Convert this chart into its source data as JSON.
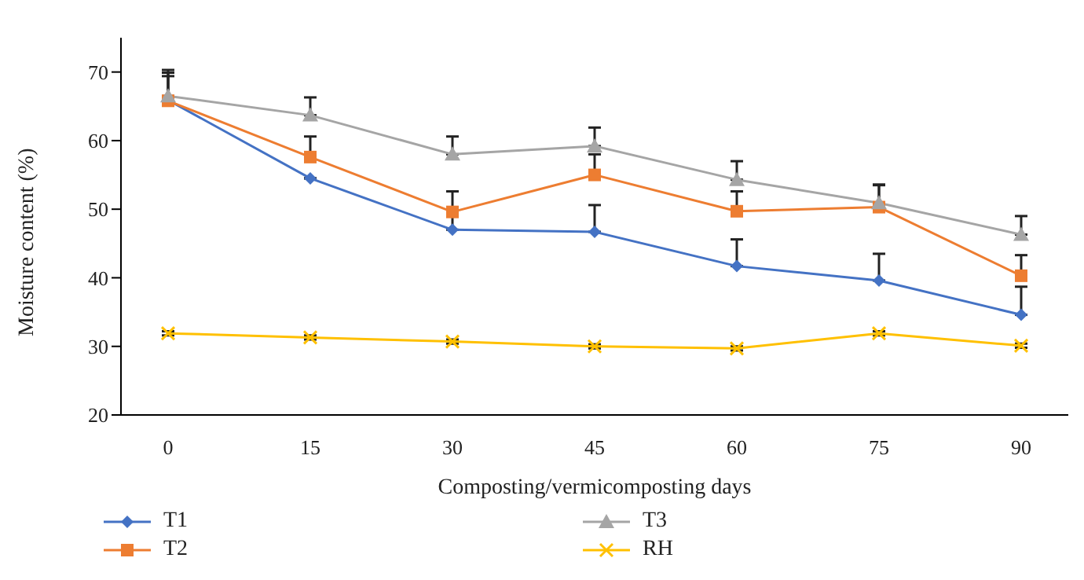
{
  "chart_data": {
    "type": "line",
    "xlabel": "Composting/vermicomposting days",
    "ylabel": "Moisture content (%)",
    "categories": [
      "0",
      "15",
      "30",
      "45",
      "60",
      "75",
      "90"
    ],
    "series": [
      {
        "name": "T1",
        "color": "#4472c4",
        "marker": "diamond",
        "values": [
          65.9,
          54.5,
          47,
          46.7,
          41.7,
          39.6,
          34.6
        ],
        "errors": [
          [
            65.9,
            69.4
          ],
          null,
          [
            47,
            49
          ],
          [
            46.7,
            50.6
          ],
          [
            41.7,
            45.6
          ],
          [
            39.6,
            43.5
          ],
          [
            34.6,
            38.7
          ]
        ]
      },
      {
        "name": "T2",
        "color": "#ed7d31",
        "marker": "square",
        "values": [
          65.8,
          57.6,
          49.6,
          55,
          49.7,
          50.3,
          40.3
        ],
        "errors": [
          [
            65.8,
            69.9
          ],
          [
            57.6,
            60.6
          ],
          [
            49.6,
            52.6
          ],
          [
            55,
            58
          ],
          [
            49.7,
            52.6
          ],
          [
            50.3,
            53.5
          ],
          [
            40.3,
            43.3
          ]
        ]
      },
      {
        "name": "T3",
        "color": "#a5a5a5",
        "marker": "triangle",
        "values": [
          66.5,
          63.7,
          58,
          59.2,
          54.3,
          50.9,
          46.3
        ],
        "errors": [
          [
            66.5,
            70.3
          ],
          [
            63.7,
            66.3
          ],
          [
            58,
            60.6
          ],
          [
            59.2,
            61.9
          ],
          [
            54.3,
            57
          ],
          [
            50.9,
            53.6
          ],
          [
            46.3,
            49
          ]
        ]
      },
      {
        "name": "RH",
        "color": "#ffc000",
        "marker": "cross",
        "values": [
          31.9,
          31.3,
          30.7,
          30,
          29.7,
          31.9,
          30.1
        ],
        "errors": [
          0.3,
          0.3,
          0.3,
          0.3,
          0.3,
          0.3,
          0.3
        ]
      }
    ],
    "ylim": [
      20,
      75
    ],
    "yticks": [
      20,
      30,
      40,
      50,
      60,
      70
    ],
    "legend": "bottom"
  }
}
